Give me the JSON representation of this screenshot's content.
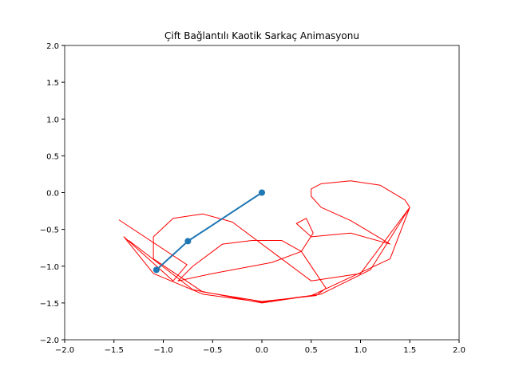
{
  "chart_data": {
    "type": "line",
    "title": "Çift Bağlantılı Kaotik Sarkaç Animasyonu",
    "xlim": [
      -2,
      2
    ],
    "ylim": [
      -2,
      2
    ],
    "xticks": [
      {
        "value": -2,
        "label": "−2.0"
      },
      {
        "value": -1.5,
        "label": "−1.5"
      },
      {
        "value": -1,
        "label": "−1.0"
      },
      {
        "value": -0.5,
        "label": "−0.5"
      },
      {
        "value": 0,
        "label": "0.0"
      },
      {
        "value": 0.5,
        "label": "0.5"
      },
      {
        "value": 1,
        "label": "1.0"
      },
      {
        "value": 1.5,
        "label": "1.5"
      },
      {
        "value": 2,
        "label": "2.0"
      }
    ],
    "yticks": [
      {
        "value": -2,
        "label": "−2.0"
      },
      {
        "value": -1.5,
        "label": "−1.5"
      },
      {
        "value": -1,
        "label": "−1.0"
      },
      {
        "value": -0.5,
        "label": "−0.5"
      },
      {
        "value": 0,
        "label": "0.0"
      },
      {
        "value": 0.5,
        "label": "0.5"
      },
      {
        "value": 1,
        "label": "1.0"
      },
      {
        "value": 1.5,
        "label": "1.5"
      },
      {
        "value": 2,
        "label": "2.0"
      }
    ],
    "series": [
      {
        "color": "#ff0000",
        "markers": false,
        "width": 1,
        "x": [
          -1.45,
          -0.76,
          -0.9,
          -1.4,
          -1.1,
          -0.6,
          0,
          0.6,
          1.1,
          1.5,
          1.45,
          1.2,
          0.9,
          0.6,
          0.5,
          0.5,
          0.6,
          0.9,
          1.3,
          0.9,
          0.5,
          0.35,
          0.45,
          0.52,
          0.4,
          0.1,
          -0.5,
          -0.85,
          -0.7,
          -0.4,
          -0.1,
          0.2,
          0.4,
          0.65,
          0.55,
          0,
          -0.6,
          -1.1,
          -1.1,
          -0.9,
          -0.6,
          -0.3,
          0.1,
          0.5,
          1.0,
          1.5,
          1.3,
          0.5,
          0,
          -0.7,
          -1.35
        ],
        "values": [
          -0.37,
          -0.98,
          -1.2,
          -0.6,
          -1.1,
          -1.38,
          -1.49,
          -1.38,
          -1.05,
          -0.2,
          -0.1,
          0.1,
          0.16,
          0.12,
          0.05,
          -0.05,
          -0.2,
          -0.38,
          -0.7,
          -0.55,
          -0.6,
          -0.42,
          -0.35,
          -0.55,
          -0.8,
          -0.95,
          -1.1,
          -1.2,
          -1.0,
          -0.7,
          -0.65,
          -0.65,
          -0.8,
          -1.3,
          -1.4,
          -1.48,
          -1.35,
          -0.9,
          -0.6,
          -0.35,
          -0.29,
          -0.4,
          -0.8,
          -1.2,
          -1.1,
          -0.2,
          -0.9,
          -1.4,
          -1.5,
          -1.32,
          -0.65
        ]
      },
      {
        "color": "#1f77b4",
        "markers": true,
        "width": 2,
        "x": [
          0,
          -0.75,
          -1.07
        ],
        "values": [
          0,
          -0.66,
          -1.05
        ]
      }
    ]
  }
}
